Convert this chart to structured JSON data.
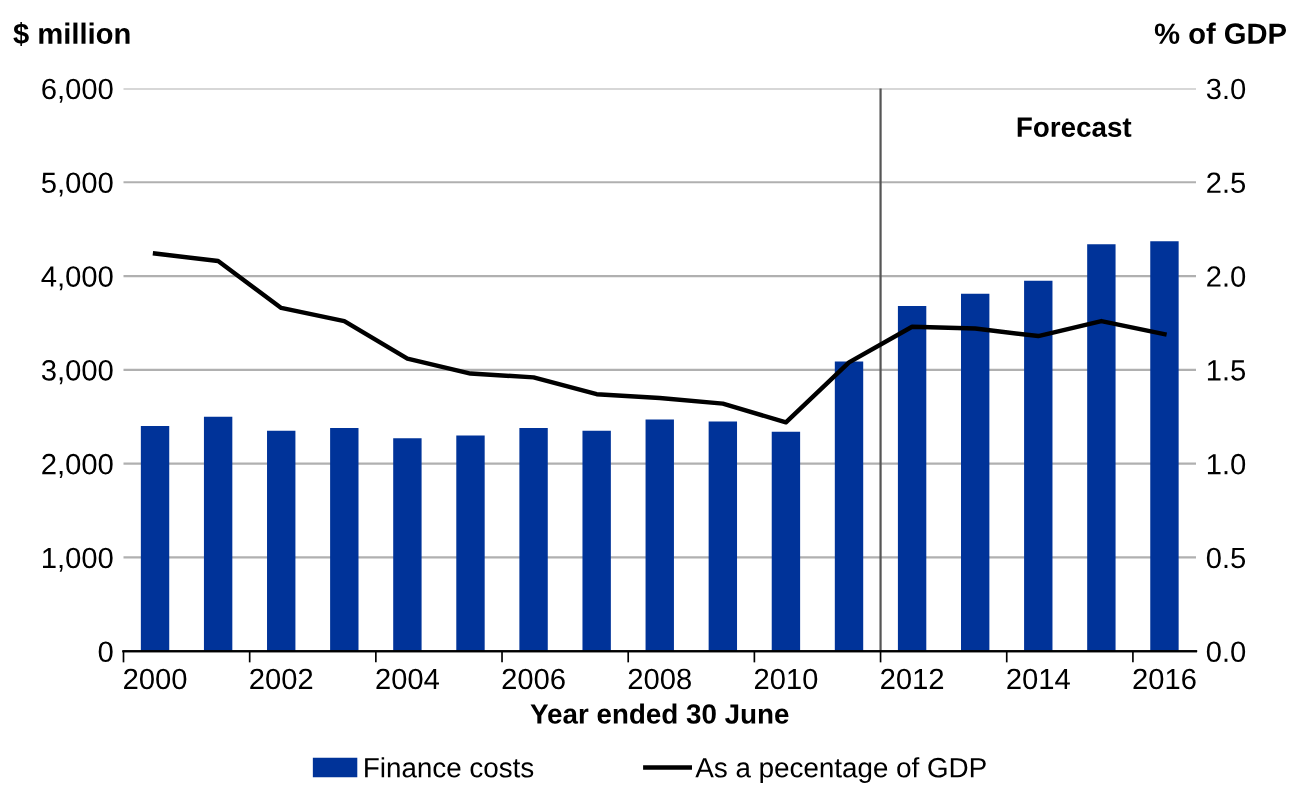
{
  "chart_data": {
    "type": "bar",
    "xlabel": "Year ended 30 June",
    "ylabel": "$ million",
    "y2label": "% of GDP",
    "x": [
      2000,
      2001,
      2002,
      2003,
      2004,
      2005,
      2006,
      2007,
      2008,
      2009,
      2010,
      2011,
      2012,
      2013,
      2014,
      2015,
      2016
    ],
    "series": [
      {
        "name": "Finance costs",
        "color": "#003399",
        "values": [
          2400,
          2500,
          2350,
          2380,
          2270,
          2300,
          2380,
          2350,
          2470,
          2450,
          2340,
          3090,
          3680,
          3810,
          3950,
          4340,
          4370
        ]
      },
      {
        "name": "As a pecentage of GDP",
        "type": "line",
        "axis": "y2",
        "color": "#000000",
        "values": [
          2.12,
          2.08,
          1.83,
          1.76,
          1.56,
          1.48,
          1.46,
          1.37,
          1.35,
          1.32,
          1.22,
          1.54,
          1.73,
          1.72,
          1.68,
          1.76,
          1.69
        ]
      }
    ],
    "xlim": [
      1999.5,
      2016.5
    ],
    "xticks": [
      2000,
      2002,
      2004,
      2006,
      2008,
      2010,
      2012,
      2014,
      2016
    ],
    "ylim": [
      0,
      6000
    ],
    "yticks": [
      {
        "value": 0,
        "label": "0"
      },
      {
        "value": 1000,
        "label": "1,000"
      },
      {
        "value": 2000,
        "label": "2,000"
      },
      {
        "value": 3000,
        "label": "3,000"
      },
      {
        "value": 4000,
        "label": "4,000"
      },
      {
        "value": 5000,
        "label": "5,000"
      },
      {
        "value": 6000,
        "label": "6,000"
      }
    ],
    "y2lim": [
      0,
      3
    ],
    "y2ticks": [
      {
        "value": 0,
        "label": "0.0"
      },
      {
        "value": 0.5,
        "label": "0.5"
      },
      {
        "value": 1,
        "label": "1.0"
      },
      {
        "value": 1.5,
        "label": "1.5"
      },
      {
        "value": 2,
        "label": "2.0"
      },
      {
        "value": 2.5,
        "label": "2.5"
      },
      {
        "value": 3,
        "label": "3.0"
      }
    ],
    "ref_lines": [
      {
        "axis": "x",
        "value": 2011.5,
        "color": "#555555"
      }
    ],
    "annotations": [
      "Forecast"
    ],
    "grid": "y",
    "legend": "bottom",
    "marker": "none",
    "line_style": "solid"
  }
}
